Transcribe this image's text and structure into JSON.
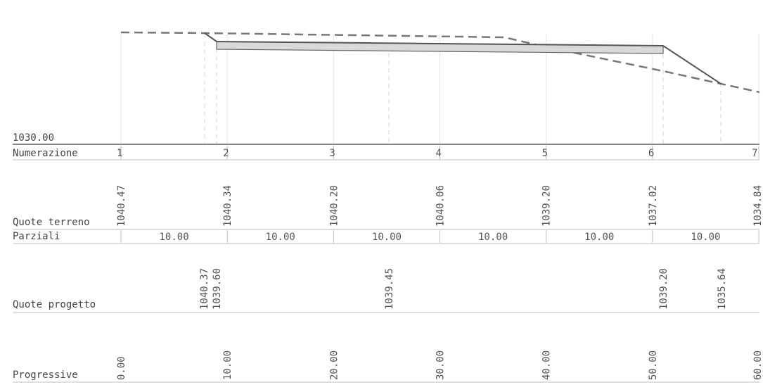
{
  "profile": {
    "datum_label": "1030.00",
    "stations": [
      {
        "number": "1",
        "progressiva": "0.00",
        "quota_terreno": "1040.47"
      },
      {
        "number": "2",
        "progressiva": "10.00",
        "quota_terreno": "1040.34"
      },
      {
        "number": "3",
        "progressiva": "20.00",
        "quota_terreno": "1040.20"
      },
      {
        "number": "4",
        "progressiva": "30.00",
        "quota_terreno": "1040.06"
      },
      {
        "number": "5",
        "progressiva": "40.00",
        "quota_terreno": "1039.20"
      },
      {
        "number": "6",
        "progressiva": "50.00",
        "quota_terreno": "1037.02"
      },
      {
        "number": "7",
        "progressiva": "60.00",
        "quota_terreno": "1034.84"
      }
    ],
    "parziali": [
      "10.00",
      "10.00",
      "10.00",
      "10.00",
      "10.00",
      "10.00"
    ],
    "quote_progetto": [
      "1040.37",
      "1039.60",
      "1039.45",
      "1039.20",
      "1035.64"
    ],
    "quote_progetto_chainage": [
      7.8,
      9.0,
      25.2,
      51.0,
      56.5
    ]
  },
  "rows": {
    "numerazione": "Numerazione",
    "quote_terreno": "Quote terreno",
    "parziali": "Parziali",
    "quote_progetto": "Quote progetto",
    "progressive": "Progressive"
  }
}
